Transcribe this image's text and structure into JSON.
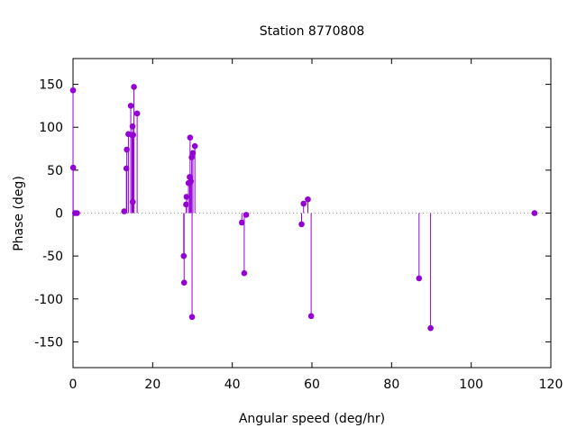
{
  "chart_data": {
    "type": "scatter",
    "style": "impulses-with-points",
    "title": "Station 8770808",
    "xlabel": "Angular speed (deg/hr)",
    "ylabel": "Phase (deg)",
    "xlim": [
      0,
      120
    ],
    "ylim": [
      -180,
      180
    ],
    "xticks": [
      0,
      20,
      40,
      60,
      80,
      100,
      120
    ],
    "yticks": [
      -150,
      -100,
      -50,
      0,
      50,
      100,
      150
    ],
    "grid": false,
    "zero_line": true,
    "colors": {
      "series": "#9400d3",
      "zero_line": "#a0a0a0",
      "axes": "#000000"
    },
    "series": [
      {
        "points": [
          [
            0.0,
            143
          ],
          [
            0.04,
            53
          ],
          [
            0.5,
            0
          ],
          [
            1.0,
            0
          ],
          [
            12.85,
            2
          ],
          [
            13.4,
            52
          ],
          [
            13.5,
            74
          ],
          [
            13.9,
            92
          ],
          [
            14.5,
            125
          ],
          [
            14.8,
            91
          ],
          [
            14.95,
            101
          ],
          [
            15.0,
            13
          ],
          [
            15.1,
            91
          ],
          [
            15.3,
            147
          ],
          [
            16.1,
            116
          ],
          [
            27.8,
            -50
          ],
          [
            27.9,
            -81
          ],
          [
            28.4,
            10
          ],
          [
            28.5,
            19
          ],
          [
            29.0,
            35
          ],
          [
            29.3,
            42
          ],
          [
            29.4,
            88
          ],
          [
            29.6,
            37
          ],
          [
            29.8,
            65
          ],
          [
            29.9,
            -121
          ],
          [
            30.1,
            70
          ],
          [
            30.6,
            78
          ],
          [
            42.4,
            -11
          ],
          [
            43.0,
            -70
          ],
          [
            43.5,
            -2
          ],
          [
            57.4,
            -13
          ],
          [
            57.9,
            11
          ],
          [
            58.98,
            16
          ],
          [
            59.8,
            -120
          ],
          [
            86.9,
            -76
          ],
          [
            89.8,
            -134
          ],
          [
            115.9,
            0
          ]
        ]
      }
    ]
  }
}
